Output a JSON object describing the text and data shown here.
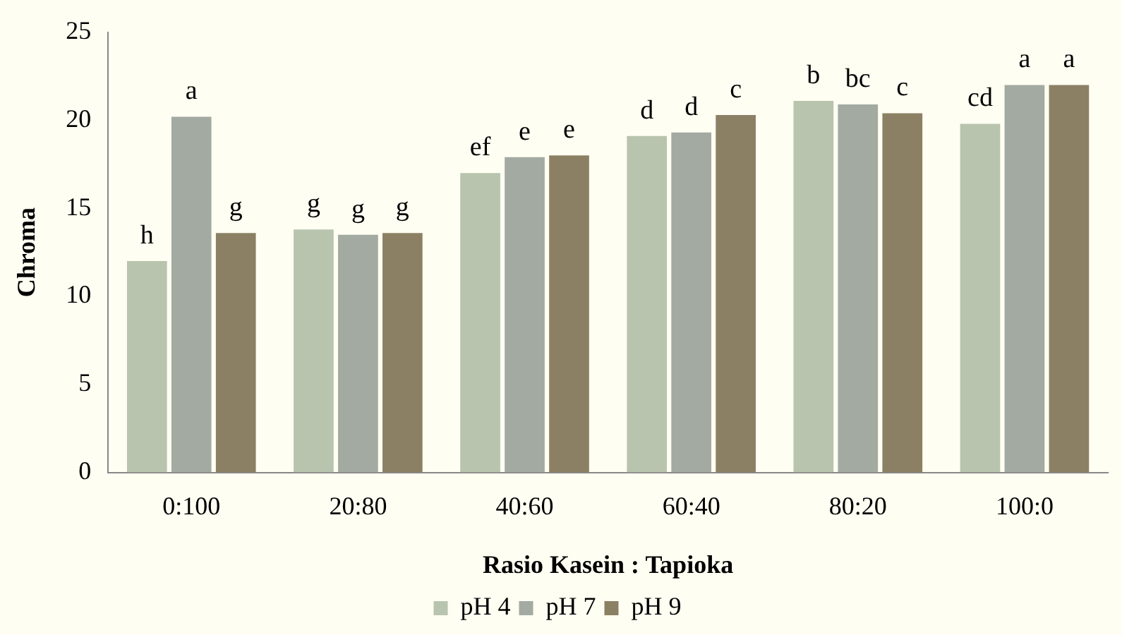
{
  "chart_data": {
    "type": "bar",
    "xlabel": "Rasio Kasein : Tapioka",
    "ylabel": "Chroma",
    "categories": [
      "0:100",
      "20:80",
      "40:60",
      "60:40",
      "80:20",
      "100:0"
    ],
    "series": [
      {
        "name": "pH 4",
        "color": "#b8c4ae",
        "values": [
          12.0,
          13.8,
          17.0,
          19.1,
          21.1,
          19.8
        ],
        "value_labels": [
          "h",
          "g",
          "ef",
          "d",
          "b",
          "cd"
        ]
      },
      {
        "name": "pH 7",
        "color": "#a3aaa2",
        "values": [
          20.2,
          13.5,
          17.9,
          19.3,
          20.9,
          22.0
        ],
        "value_labels": [
          "a",
          "g",
          "e",
          "d",
          "bc",
          "a"
        ]
      },
      {
        "name": "pH 9",
        "color": "#8c8064",
        "values": [
          13.6,
          13.6,
          18.0,
          20.3,
          20.4,
          22.0
        ],
        "value_labels": [
          "g",
          "g",
          "e",
          "c",
          "c",
          "a"
        ]
      }
    ],
    "ylim": [
      0,
      25
    ],
    "yticks": [
      0,
      5,
      10,
      15,
      20,
      25
    ],
    "grid": false,
    "legend": "bottom"
  }
}
